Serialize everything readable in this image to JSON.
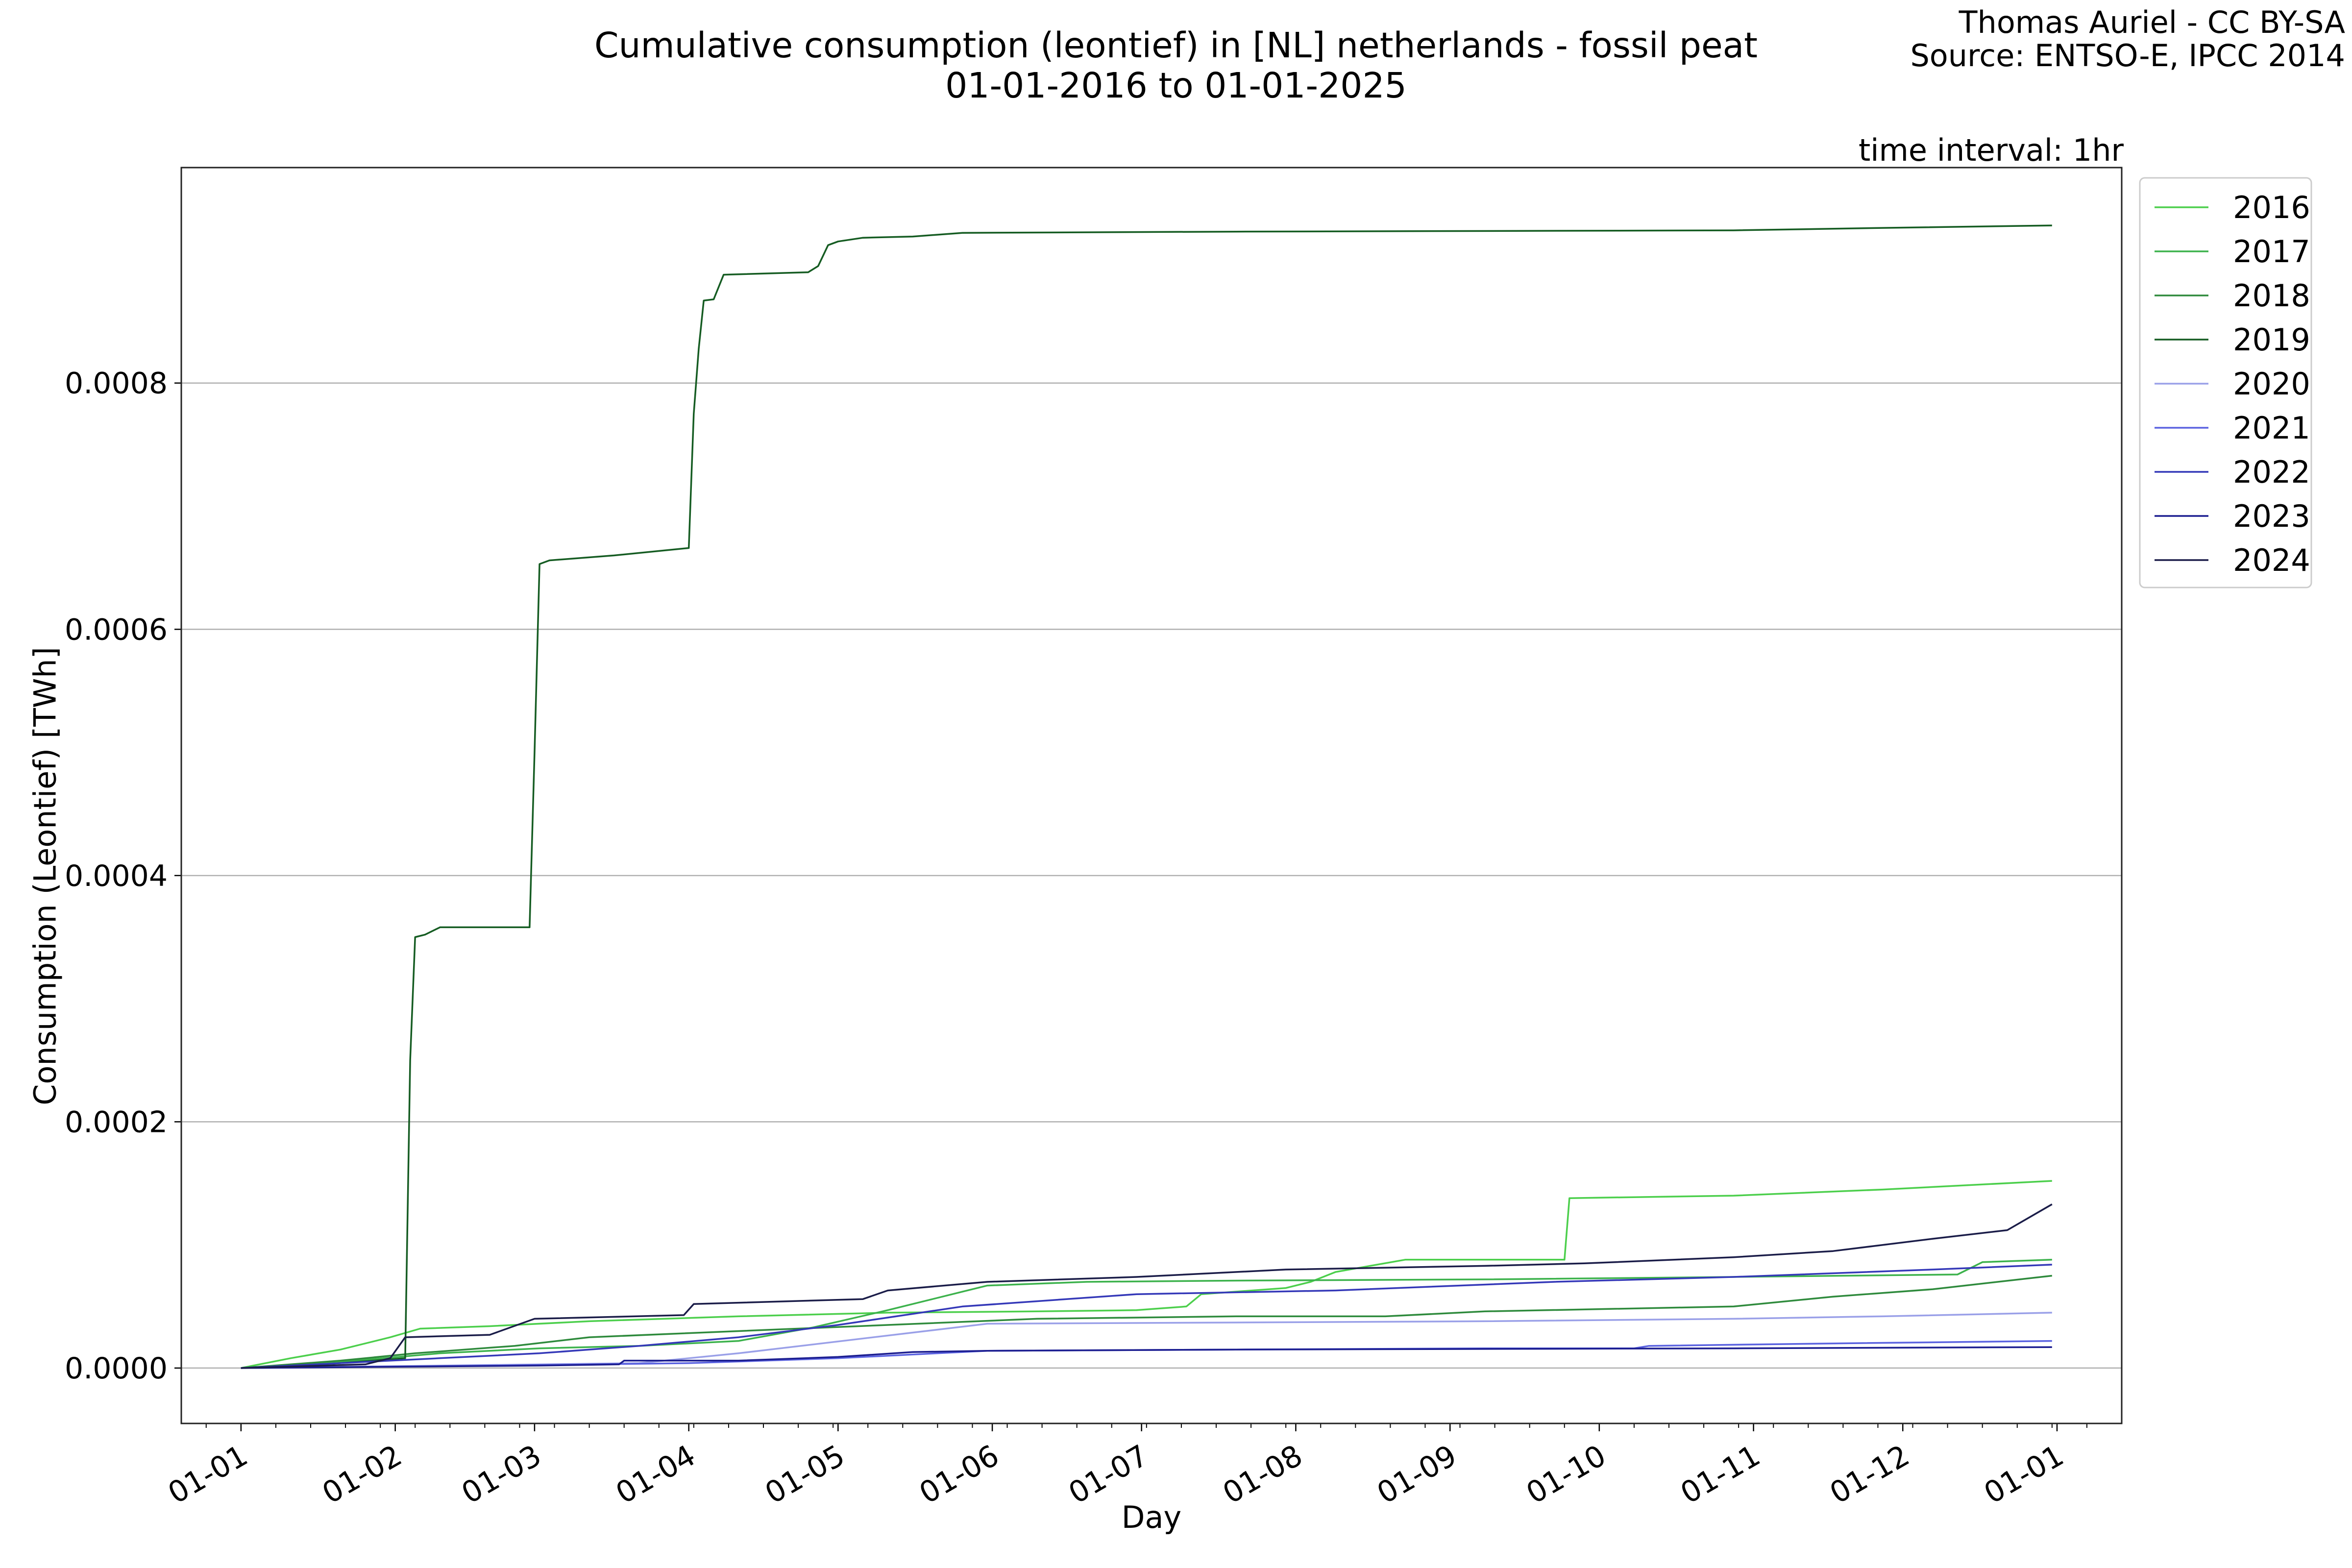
{
  "header": {
    "title_line1": "Cumulative consumption (leontief) in [NL] netherlands - fossil peat",
    "title_line2": "01-01-2016 to 01-01-2025",
    "credit_line1": "Thomas Auriel - CC BY-SA",
    "credit_line2": "Source: ENTSO-E, IPCC 2014",
    "interval": "time interval: 1hr"
  },
  "chart_data": {
    "type": "line",
    "title": "Cumulative consumption (leontief) in [NL] netherlands - fossil peat\n01-01-2016 to 01-01-2025",
    "xlabel": "Day",
    "ylabel": "Consumption (Leontief) [TWh]",
    "xlim": [
      -12,
      378
    ],
    "ylim": [
      -4.5e-05,
      0.000975
    ],
    "yticks": [
      0.0,
      0.0002,
      0.0004,
      0.0006,
      0.0008
    ],
    "ytick_labels": [
      "0.0000",
      "0.0002",
      "0.0004",
      "0.0006",
      "0.0008"
    ],
    "xticks": [
      0,
      31,
      59,
      90,
      120,
      151,
      181,
      212,
      243,
      273,
      304,
      334,
      365
    ],
    "xtick_labels": [
      "01-01",
      "01-02",
      "01-03",
      "01-04",
      "01-05",
      "01-06",
      "01-07",
      "01-08",
      "01-09",
      "01-10",
      "01-11",
      "01-12",
      "01-01"
    ],
    "grid": "horizontal",
    "legend": "outside-right",
    "series": [
      {
        "name": "2016",
        "color": "#4ccf4c",
        "x": [
          0,
          10,
          20,
          30,
          36,
          50,
          70,
          100,
          130,
          160,
          180,
          190,
          193,
          210,
          215,
          220,
          234,
          250,
          266,
          267,
          300,
          330,
          364
        ],
        "y": [
          0.0,
          8e-06,
          1.5e-05,
          2.5e-05,
          3.2e-05,
          3.4e-05,
          3.8e-05,
          4.2e-05,
          4.5e-05,
          4.6e-05,
          4.7e-05,
          5e-05,
          6e-05,
          6.5e-05,
          7e-05,
          7.8e-05,
          8.8e-05,
          8.8e-05,
          8.8e-05,
          0.000138,
          0.00014,
          0.000145,
          0.000152
        ]
      },
      {
        "name": "2017",
        "color": "#3cb24c",
        "x": [
          0,
          20,
          40,
          60,
          80,
          100,
          115,
          130,
          145,
          150,
          170,
          200,
          250,
          300,
          345,
          350,
          364
        ],
        "y": [
          0.0,
          5e-06,
          1.2e-05,
          1.6e-05,
          1.8e-05,
          2.2e-05,
          3.3e-05,
          4.7e-05,
          6.2e-05,
          6.7e-05,
          7e-05,
          7.1e-05,
          7.2e-05,
          7.4e-05,
          7.6e-05,
          8.6e-05,
          8.8e-05
        ]
      },
      {
        "name": "2018",
        "color": "#2e8a3c",
        "x": [
          0,
          20,
          35,
          55,
          70,
          100,
          130,
          160,
          200,
          230,
          250,
          300,
          320,
          340,
          364
        ],
        "y": [
          0.0,
          6e-06,
          1.2e-05,
          1.8e-05,
          2.5e-05,
          3e-05,
          3.5e-05,
          4e-05,
          4.2e-05,
          4.2e-05,
          4.6e-05,
          5e-05,
          5.8e-05,
          6.4e-05,
          7.5e-05
        ]
      },
      {
        "name": "2019",
        "color": "#155c22",
        "x": [
          0,
          20,
          33,
          34,
          35,
          37,
          40,
          58,
          59,
          60,
          62,
          75,
          90,
          91,
          92,
          93,
          95,
          97,
          114,
          116,
          118,
          120,
          125,
          135,
          145,
          200,
          300,
          330,
          364
        ],
        "y": [
          0.0,
          4e-06,
          8e-06,
          0.00025,
          0.00035,
          0.000352,
          0.000358,
          0.000358,
          0.0005,
          0.000653,
          0.000656,
          0.00066,
          0.000666,
          0.000775,
          0.000828,
          0.000867,
          0.000868,
          0.000888,
          0.00089,
          0.000895,
          0.000912,
          0.000915,
          0.000918,
          0.000919,
          0.000922,
          0.000923,
          0.000924,
          0.000926,
          0.000928
        ]
      },
      {
        "name": "2020",
        "color": "#9aa0e8",
        "x": [
          0,
          40,
          80,
          100,
          150,
          200,
          250,
          300,
          330,
          364
        ],
        "y": [
          0.0,
          2e-06,
          4e-06,
          1.2e-05,
          3.6e-05,
          3.7e-05,
          3.8e-05,
          4e-05,
          4.2e-05,
          4.5e-05
        ]
      },
      {
        "name": "2021",
        "color": "#5a62e0",
        "x": [
          0,
          50,
          90,
          120,
          150,
          200,
          250,
          280,
          283,
          320,
          364
        ],
        "y": [
          0.0,
          2e-06,
          4e-06,
          8e-06,
          1.4e-05,
          1.5e-05,
          1.6e-05,
          1.6e-05,
          1.8e-05,
          2e-05,
          2.2e-05
        ]
      },
      {
        "name": "2022",
        "color": "#3438b8",
        "x": [
          0,
          40,
          60,
          80,
          100,
          120,
          145,
          180,
          220,
          264,
          300,
          340,
          364
        ],
        "y": [
          0.0,
          8e-06,
          1.2e-05,
          1.8e-05,
          2.5e-05,
          3.5e-05,
          5e-05,
          6e-05,
          6.3e-05,
          7e-05,
          7.4e-05,
          8e-05,
          8.4e-05
        ]
      },
      {
        "name": "2023",
        "color": "#1c1e90",
        "x": [
          0,
          60,
          76,
          77,
          100,
          120,
          135,
          150,
          200,
          300,
          364
        ],
        "y": [
          0.0,
          2e-06,
          3e-06,
          6e-06,
          6e-06,
          9e-06,
          1.3e-05,
          1.4e-05,
          1.5e-05,
          1.6e-05,
          1.7e-05
        ]
      },
      {
        "name": "2024",
        "color": "#1a1c48",
        "x": [
          0,
          25,
          30,
          33,
          50,
          59,
          89,
          91,
          125,
          130,
          150,
          180,
          210,
          250,
          270,
          300,
          320,
          340,
          355,
          364
        ],
        "y": [
          0.0,
          3e-06,
          8e-06,
          2.5e-05,
          2.7e-05,
          4e-05,
          4.3e-05,
          5.2e-05,
          5.6e-05,
          6.3e-05,
          7e-05,
          7.4e-05,
          8e-05,
          8.3e-05,
          8.5e-05,
          9e-05,
          9.5e-05,
          0.000105,
          0.000112,
          0.000133
        ]
      }
    ]
  }
}
